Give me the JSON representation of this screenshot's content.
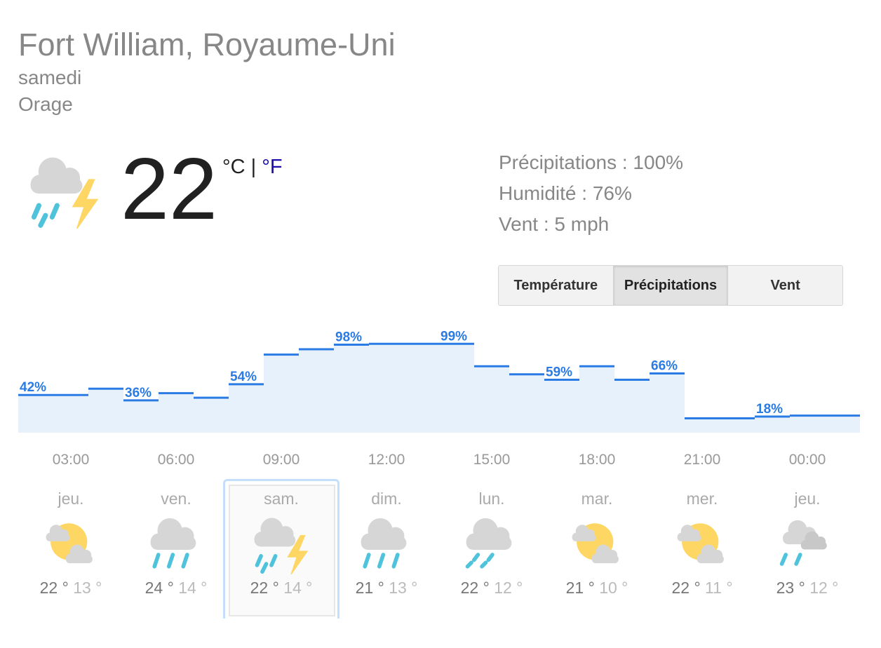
{
  "location": "Fort William, Royaume-Uni",
  "day": "samedi",
  "condition": "Orage",
  "current": {
    "icon": "thunderstorm",
    "temperature": "22",
    "unit_c": "°C",
    "separator": "|",
    "unit_f": "°F",
    "active_unit": "°C"
  },
  "details": {
    "precipitation": "Précipitations : 100%",
    "humidity": "Humidité : 76%",
    "wind": "Vent : 5 mph"
  },
  "tabs": [
    {
      "label": "Température",
      "selected": false
    },
    {
      "label": "Précipitations",
      "selected": true
    },
    {
      "label": "Vent",
      "selected": false
    }
  ],
  "colors": {
    "line": "#2a7be4",
    "fill": "#e7f1fb",
    "selected_border": "#c3dffb"
  },
  "chart_data": {
    "type": "area",
    "step": true,
    "ylim": [
      0,
      100
    ],
    "unit": "%",
    "values": [
      42,
      42,
      49,
      36,
      44,
      39,
      54,
      87,
      93,
      98,
      99,
      99,
      99,
      74,
      65,
      59,
      74,
      59,
      66,
      16,
      16,
      18,
      19,
      19
    ],
    "labels": [
      "42%",
      "",
      "",
      "36%",
      "",
      "",
      "54%",
      "",
      "",
      "98%",
      "",
      "",
      "99%",
      "",
      "",
      "59%",
      "",
      "",
      "66%",
      "",
      "",
      "18%",
      "",
      ""
    ],
    "time_ticks": [
      "03:00",
      "06:00",
      "09:00",
      "12:00",
      "15:00",
      "18:00",
      "21:00",
      "00:00"
    ]
  },
  "forecast": [
    {
      "day": "jeu.",
      "icon": "partly-cloudy",
      "high": "22 °",
      "low": "13 °"
    },
    {
      "day": "ven.",
      "icon": "rain",
      "high": "24 °",
      "low": "14 °"
    },
    {
      "day": "sam.",
      "icon": "thunderstorm",
      "high": "22 °",
      "low": "14 °",
      "selected": true
    },
    {
      "day": "dim.",
      "icon": "rain",
      "high": "21 °",
      "low": "13 °"
    },
    {
      "day": "lun.",
      "icon": "light-rain",
      "high": "22 °",
      "low": "12 °"
    },
    {
      "day": "mar.",
      "icon": "partly-cloudy",
      "high": "21 °",
      "low": "10 °"
    },
    {
      "day": "mer.",
      "icon": "partly-cloudy",
      "high": "22 °",
      "low": "11 °"
    },
    {
      "day": "jeu.",
      "icon": "rain-and-clouds",
      "high": "23 °",
      "low": "12 °"
    }
  ]
}
